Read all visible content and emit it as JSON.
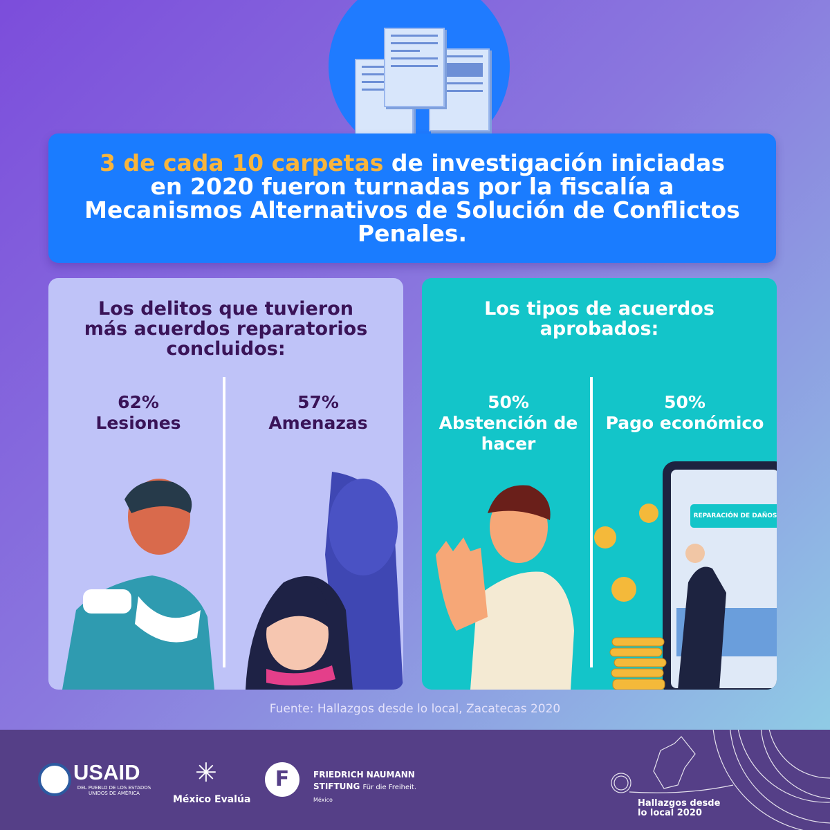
{
  "headline": {
    "highlight": "3 de cada 10 carpetas",
    "rest": " de investigación iniciadas en 2020 fueron turnadas por la fiscalía a Mecanismos Alternativos de Solución de Conflictos Penales."
  },
  "left_card": {
    "title": "Los delitos que tuvieron más acuerdos reparatorios concluidos:",
    "stats": [
      {
        "value": "62%",
        "label": "Lesiones"
      },
      {
        "value": "57%",
        "label": "Amenazas"
      }
    ]
  },
  "right_card": {
    "title": "Los tipos de acuerdos aprobados:",
    "stats": [
      {
        "value": "50%",
        "label": "Abstención de hacer"
      },
      {
        "value": "50%",
        "label": "Pago económico"
      }
    ],
    "screen_label": "REPARACIÓN DE DAÑOS"
  },
  "source": "Fuente: Hallazgos desde lo local, Zacatecas 2020",
  "footer": {
    "usaid": "USAID",
    "usaid_sub": "DEL PUEBLO DE LOS ESTADOS UNIDOS DE AMÉRICA",
    "mexico_evalua": "México Evalúa",
    "fn_line1": "FRIEDRICH NAUMANN",
    "fn_line2": "STIFTUNG",
    "fn_tag": "Für die Freiheit.",
    "fn_country": "México",
    "project": "Hallazgos desde lo local 2020"
  },
  "colors": {
    "banner": "#1a7cff",
    "highlight": "#f9b53c",
    "left_card": "#bfc3f8",
    "right_card": "#13c5c9",
    "footer": "#553f87"
  }
}
